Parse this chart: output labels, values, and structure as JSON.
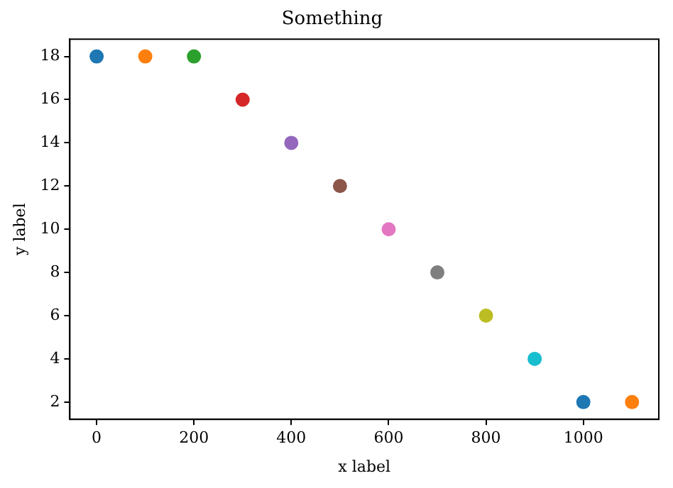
{
  "chart_data": {
    "type": "scatter",
    "title": "Something",
    "xlabel": "x label",
    "ylabel": "y label",
    "x": [
      0,
      100,
      200,
      300,
      400,
      500,
      600,
      700,
      800,
      900,
      1000,
      1100
    ],
    "values": [
      18,
      18,
      18,
      16,
      14,
      12,
      10,
      8,
      6,
      4,
      2,
      2
    ],
    "colors": [
      "#1f77b4",
      "#ff7f0e",
      "#2ca02c",
      "#d62728",
      "#9467bd",
      "#8c564b",
      "#e377c2",
      "#7f7f7f",
      "#bcbd22",
      "#17becf",
      "#1f77b4",
      "#ff7f0e"
    ],
    "xlim": [
      -55,
      1155
    ],
    "ylim": [
      1.2,
      18.8
    ],
    "xticks": [
      0,
      200,
      400,
      600,
      800,
      1000
    ],
    "yticks": [
      2,
      4,
      6,
      8,
      10,
      12,
      14,
      16,
      18
    ],
    "grid": false,
    "legend": false,
    "marker": "circle"
  }
}
